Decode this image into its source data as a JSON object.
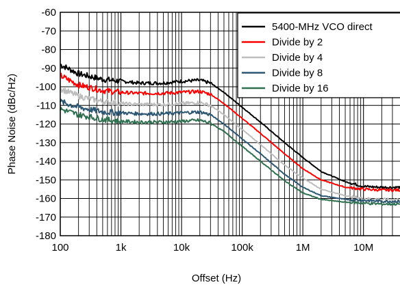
{
  "chart_data": {
    "type": "line",
    "xlabel": "Offset (Hz)",
    "ylabel": "Phase Noise (dBc/Hz)",
    "x_scale": "log",
    "xlim": [
      100,
      40000000
    ],
    "ylim": [
      -180,
      -60
    ],
    "x_ticks": [
      {
        "value": 100,
        "label": "100"
      },
      {
        "value": 1000,
        "label": "1k"
      },
      {
        "value": 10000,
        "label": "10k"
      },
      {
        "value": 100000,
        "label": "100k"
      },
      {
        "value": 1000000,
        "label": "1M"
      },
      {
        "value": 10000000,
        "label": "10M"
      }
    ],
    "y_ticks": [
      {
        "value": -60,
        "label": "-60"
      },
      {
        "value": -70,
        "label": "-70"
      },
      {
        "value": -80,
        "label": "-80"
      },
      {
        "value": -90,
        "label": "-90"
      },
      {
        "value": -100,
        "label": "-100"
      },
      {
        "value": -110,
        "label": "-110"
      },
      {
        "value": -120,
        "label": "-120"
      },
      {
        "value": -130,
        "label": "-130"
      },
      {
        "value": -140,
        "label": "-140"
      },
      {
        "value": -150,
        "label": "-150"
      },
      {
        "value": -160,
        "label": "-160"
      },
      {
        "value": -170,
        "label": "-170"
      },
      {
        "value": -180,
        "label": "-180"
      }
    ],
    "grid": true,
    "legend_position": "top-right",
    "series": [
      {
        "name": "5400-MHz VCO direct",
        "color": "#000000",
        "x": [
          100,
          200,
          500,
          1000,
          2000,
          5000,
          10000,
          20000,
          30000,
          50000,
          100000,
          200000,
          500000,
          1000000,
          2000000,
          5000000,
          10000000,
          20000000,
          40000000
        ],
        "y": [
          -88,
          -93,
          -96,
          -97,
          -98,
          -98,
          -97,
          -96.5,
          -98,
          -103,
          -111,
          -119,
          -130,
          -138,
          -145.5,
          -151,
          -153.5,
          -154,
          -154
        ]
      },
      {
        "name": "Divide by 2",
        "color": "#ff0000",
        "x": [
          100,
          200,
          500,
          1000,
          2000,
          5000,
          10000,
          20000,
          30000,
          50000,
          100000,
          200000,
          500000,
          1000000,
          2000000,
          5000000,
          10000000,
          20000000,
          40000000
        ],
        "y": [
          -94,
          -99,
          -102,
          -103,
          -103.5,
          -103.5,
          -103,
          -102.5,
          -104,
          -109,
          -117,
          -125,
          -136,
          -144,
          -150,
          -154,
          -155,
          -155.5,
          -155.5
        ]
      },
      {
        "name": "Divide by 4",
        "color": "#bdbdbd",
        "x": [
          100,
          200,
          500,
          1000,
          2000,
          5000,
          10000,
          20000,
          30000,
          50000,
          100000,
          200000,
          500000,
          1000000,
          2000000,
          5000000,
          10000000,
          20000000,
          40000000
        ],
        "y": [
          -101,
          -105,
          -108,
          -109,
          -109.5,
          -109.5,
          -109,
          -108.5,
          -110,
          -115,
          -123,
          -131,
          -142,
          -149,
          -155,
          -158.5,
          -160,
          -160.5,
          -160.5
        ]
      },
      {
        "name": "Divide by 8",
        "color": "#2b5674",
        "x": [
          100,
          200,
          500,
          1000,
          2000,
          5000,
          10000,
          20000,
          30000,
          50000,
          100000,
          200000,
          500000,
          1000000,
          2000000,
          5000000,
          10000000,
          20000000,
          40000000
        ],
        "y": [
          -108,
          -111,
          -113.5,
          -114,
          -114.5,
          -114.5,
          -114,
          -113.5,
          -115,
          -120,
          -128,
          -136,
          -147,
          -154,
          -158.5,
          -160.5,
          -161,
          -161.5,
          -161.5
        ]
      },
      {
        "name": "Divide by 16",
        "color": "#2e7050",
        "x": [
          100,
          200,
          500,
          1000,
          2000,
          5000,
          10000,
          20000,
          30000,
          50000,
          100000,
          200000,
          500000,
          1000000,
          2000000,
          5000000,
          10000000,
          20000000,
          40000000
        ],
        "y": [
          -112,
          -115,
          -117.5,
          -118.5,
          -119,
          -119,
          -118.5,
          -118,
          -119.5,
          -124,
          -132,
          -140,
          -150.5,
          -157,
          -160.5,
          -162,
          -162.5,
          -163,
          -163
        ]
      }
    ]
  }
}
